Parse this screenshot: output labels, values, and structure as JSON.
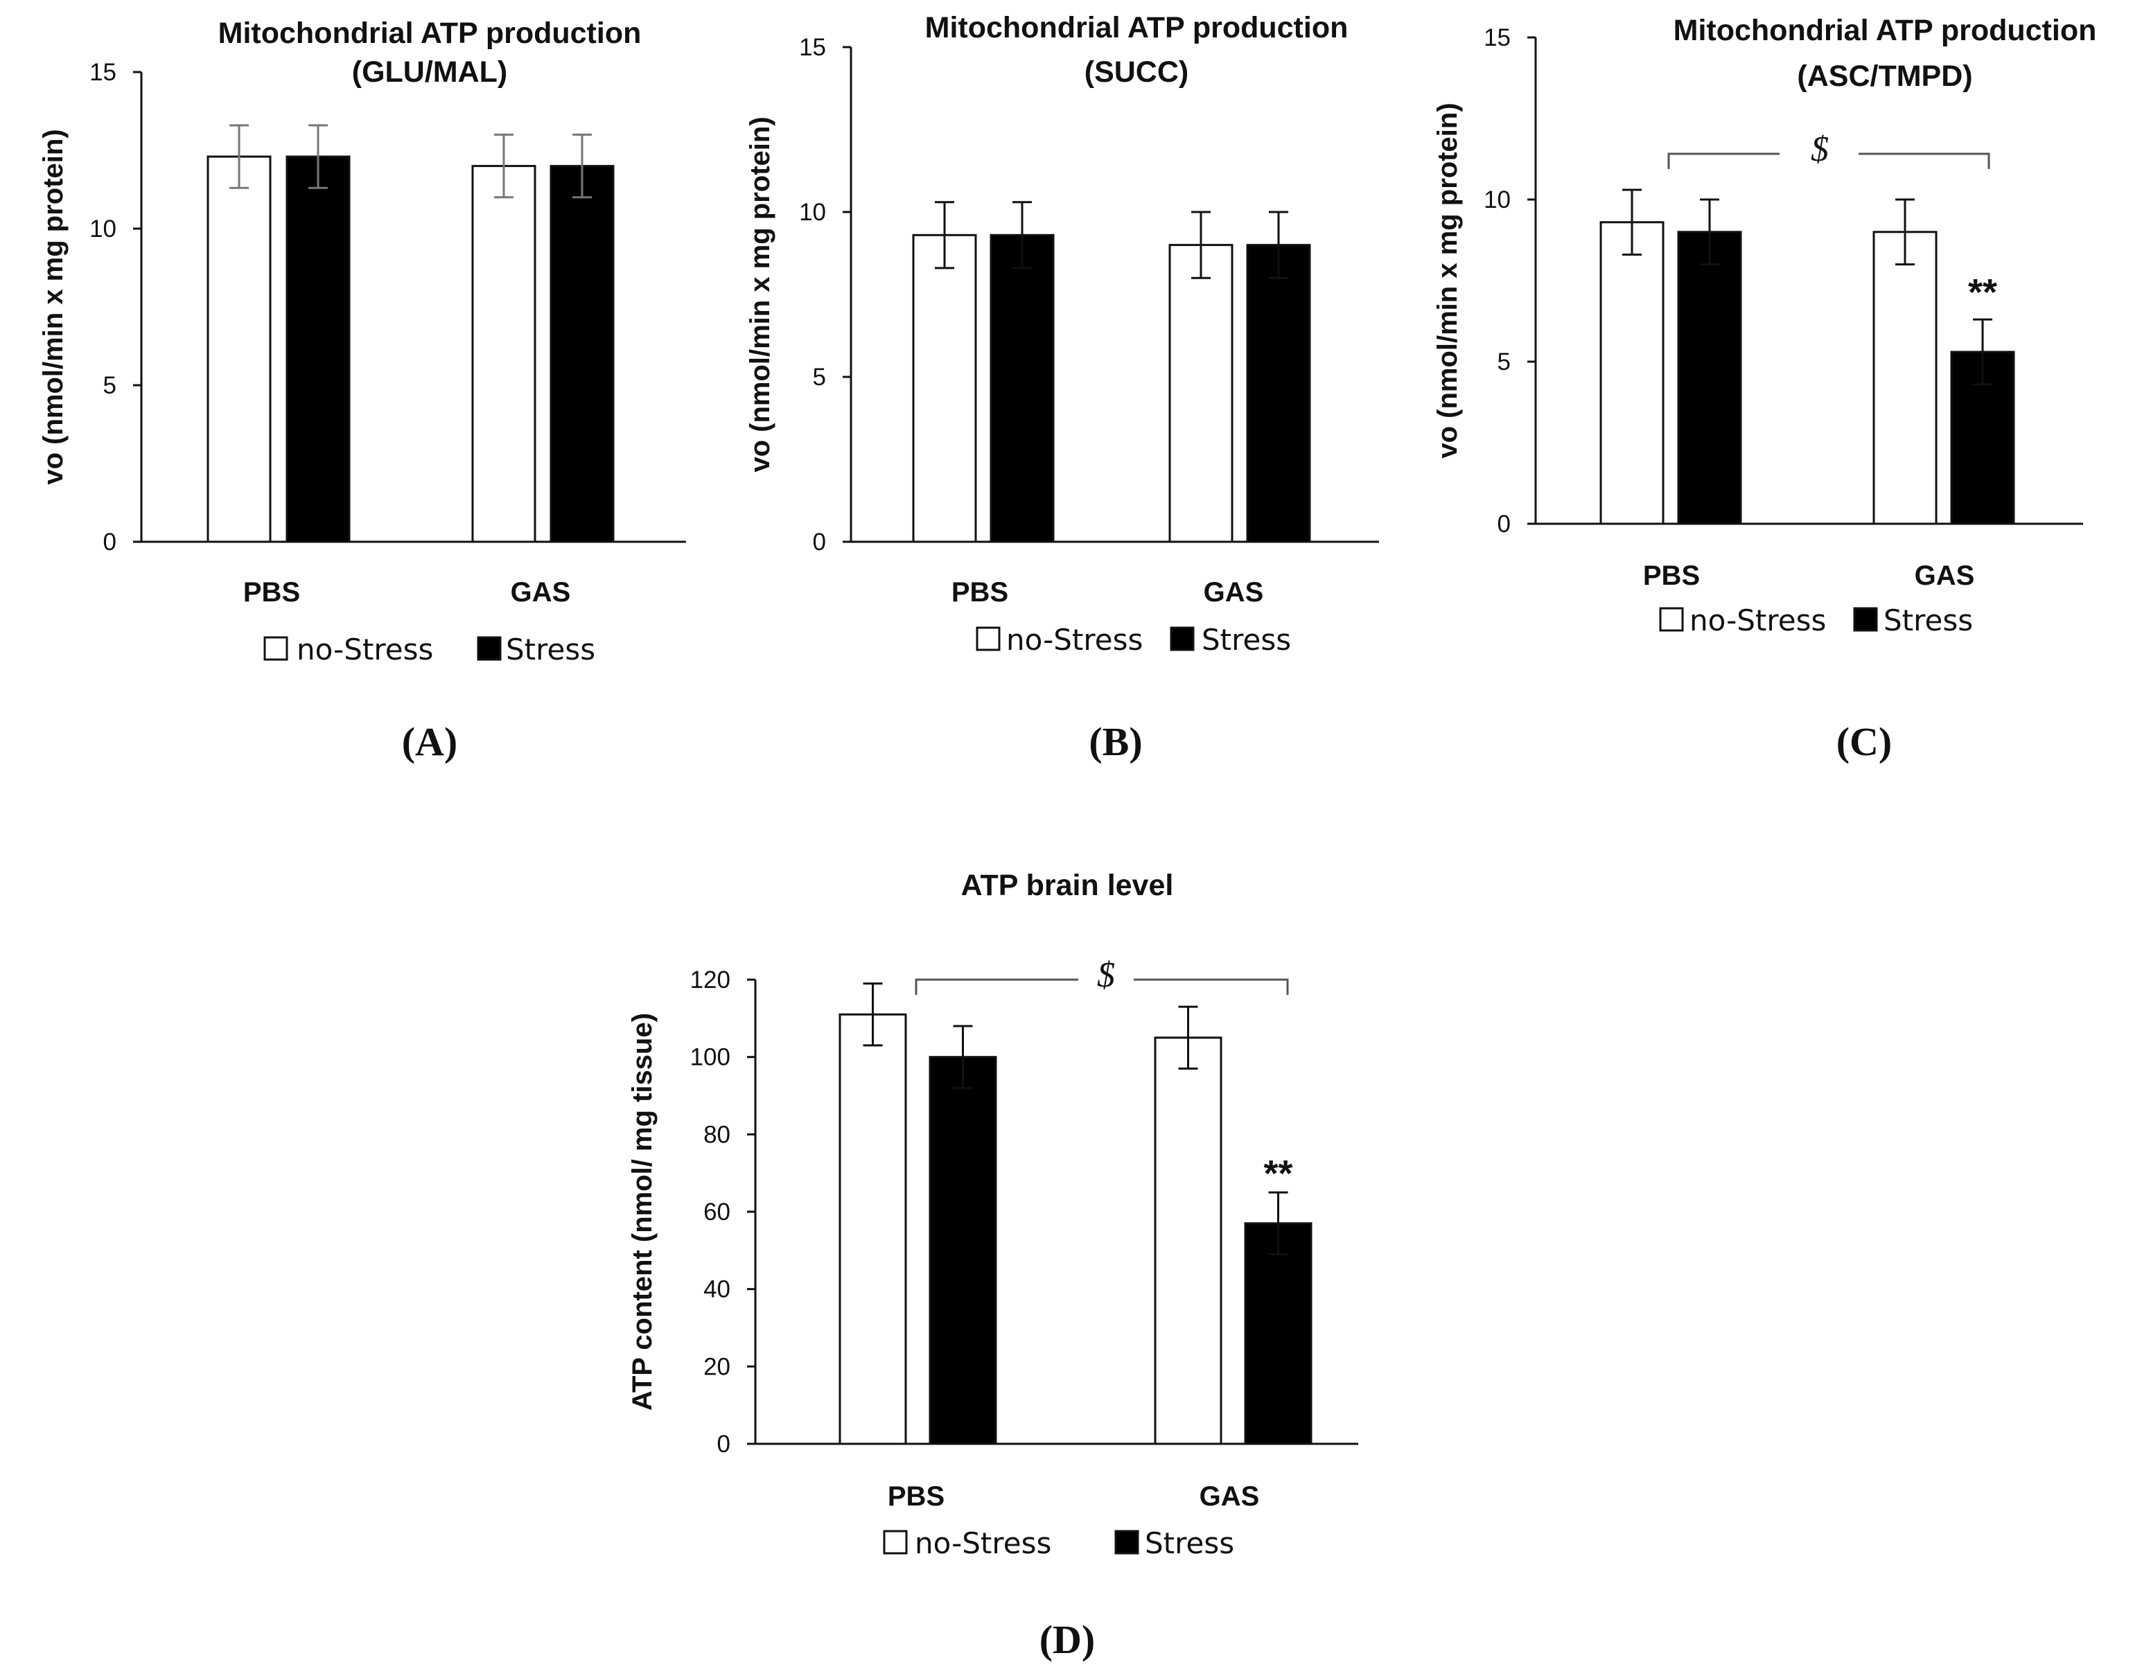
{
  "legend": {
    "no_stress": "no-Stress",
    "stress": "Stress"
  },
  "colors": {
    "no_stress_fill": "#ffffff",
    "stress_fill": "#000000",
    "axis": "#111111",
    "errorbar_a": "#777777",
    "errorbar": "#111111"
  },
  "chart_data": [
    {
      "id": "A",
      "type": "bar",
      "title": "Mitochondrial ATP production",
      "subtitle": "(GLU/MAL)",
      "ylabel": "vo (nmol/min x mg protein)",
      "xlabel": "",
      "categories": [
        "PBS",
        "GAS"
      ],
      "ylim": [
        0,
        15
      ],
      "yticks": [
        0,
        5,
        10,
        15
      ],
      "grid": false,
      "series": [
        {
          "name": "no-Stress",
          "values": [
            12.3,
            12.0
          ],
          "errors": [
            1.0,
            1.0
          ]
        },
        {
          "name": "Stress",
          "values": [
            12.3,
            12.0
          ],
          "errors": [
            1.0,
            1.0
          ]
        }
      ],
      "significance": "",
      "bracket_label": "",
      "panel_label": "(A)"
    },
    {
      "id": "B",
      "type": "bar",
      "title": "Mitochondrial ATP production",
      "subtitle": "(SUCC)",
      "ylabel": "vo (nmol/min x mg protein)",
      "xlabel": "",
      "categories": [
        "PBS",
        "GAS"
      ],
      "ylim": [
        0,
        15
      ],
      "yticks": [
        0,
        5,
        10,
        15
      ],
      "grid": false,
      "series": [
        {
          "name": "no-Stress",
          "values": [
            9.3,
            9.0
          ],
          "errors": [
            1.0,
            1.0
          ]
        },
        {
          "name": "Stress",
          "values": [
            9.3,
            9.0
          ],
          "errors": [
            1.0,
            1.0
          ]
        }
      ],
      "significance": "",
      "bracket_label": "",
      "panel_label": "(B)"
    },
    {
      "id": "C",
      "type": "bar",
      "title": "Mitochondrial ATP production",
      "subtitle": "(ASC/TMPD)",
      "ylabel": "vo (nmol/min x mg protein)",
      "xlabel": "",
      "categories": [
        "PBS",
        "GAS"
      ],
      "ylim": [
        0,
        15
      ],
      "yticks": [
        0,
        5,
        10,
        15
      ],
      "grid": false,
      "series": [
        {
          "name": "no-Stress",
          "values": [
            9.3,
            9.0
          ],
          "errors": [
            1.0,
            1.0
          ]
        },
        {
          "name": "Stress",
          "values": [
            9.0,
            5.3
          ],
          "errors": [
            1.0,
            1.0
          ]
        }
      ],
      "significance": "**",
      "bracket_label": "$",
      "panel_label": "(C)"
    },
    {
      "id": "D",
      "type": "bar",
      "title": "ATP brain level",
      "subtitle": "",
      "ylabel": "ATP content (nmol/ mg tissue)",
      "xlabel": "",
      "categories": [
        "PBS",
        "GAS"
      ],
      "ylim": [
        0,
        120
      ],
      "yticks": [
        0,
        20,
        40,
        60,
        80,
        100,
        120
      ],
      "grid": false,
      "series": [
        {
          "name": "no-Stress",
          "values": [
            111,
            105
          ],
          "errors": [
            8,
            8
          ]
        },
        {
          "name": "Stress",
          "values": [
            100,
            57
          ],
          "errors": [
            8,
            8
          ]
        }
      ],
      "significance": "**",
      "bracket_label": "$",
      "panel_label": "(D)"
    }
  ]
}
